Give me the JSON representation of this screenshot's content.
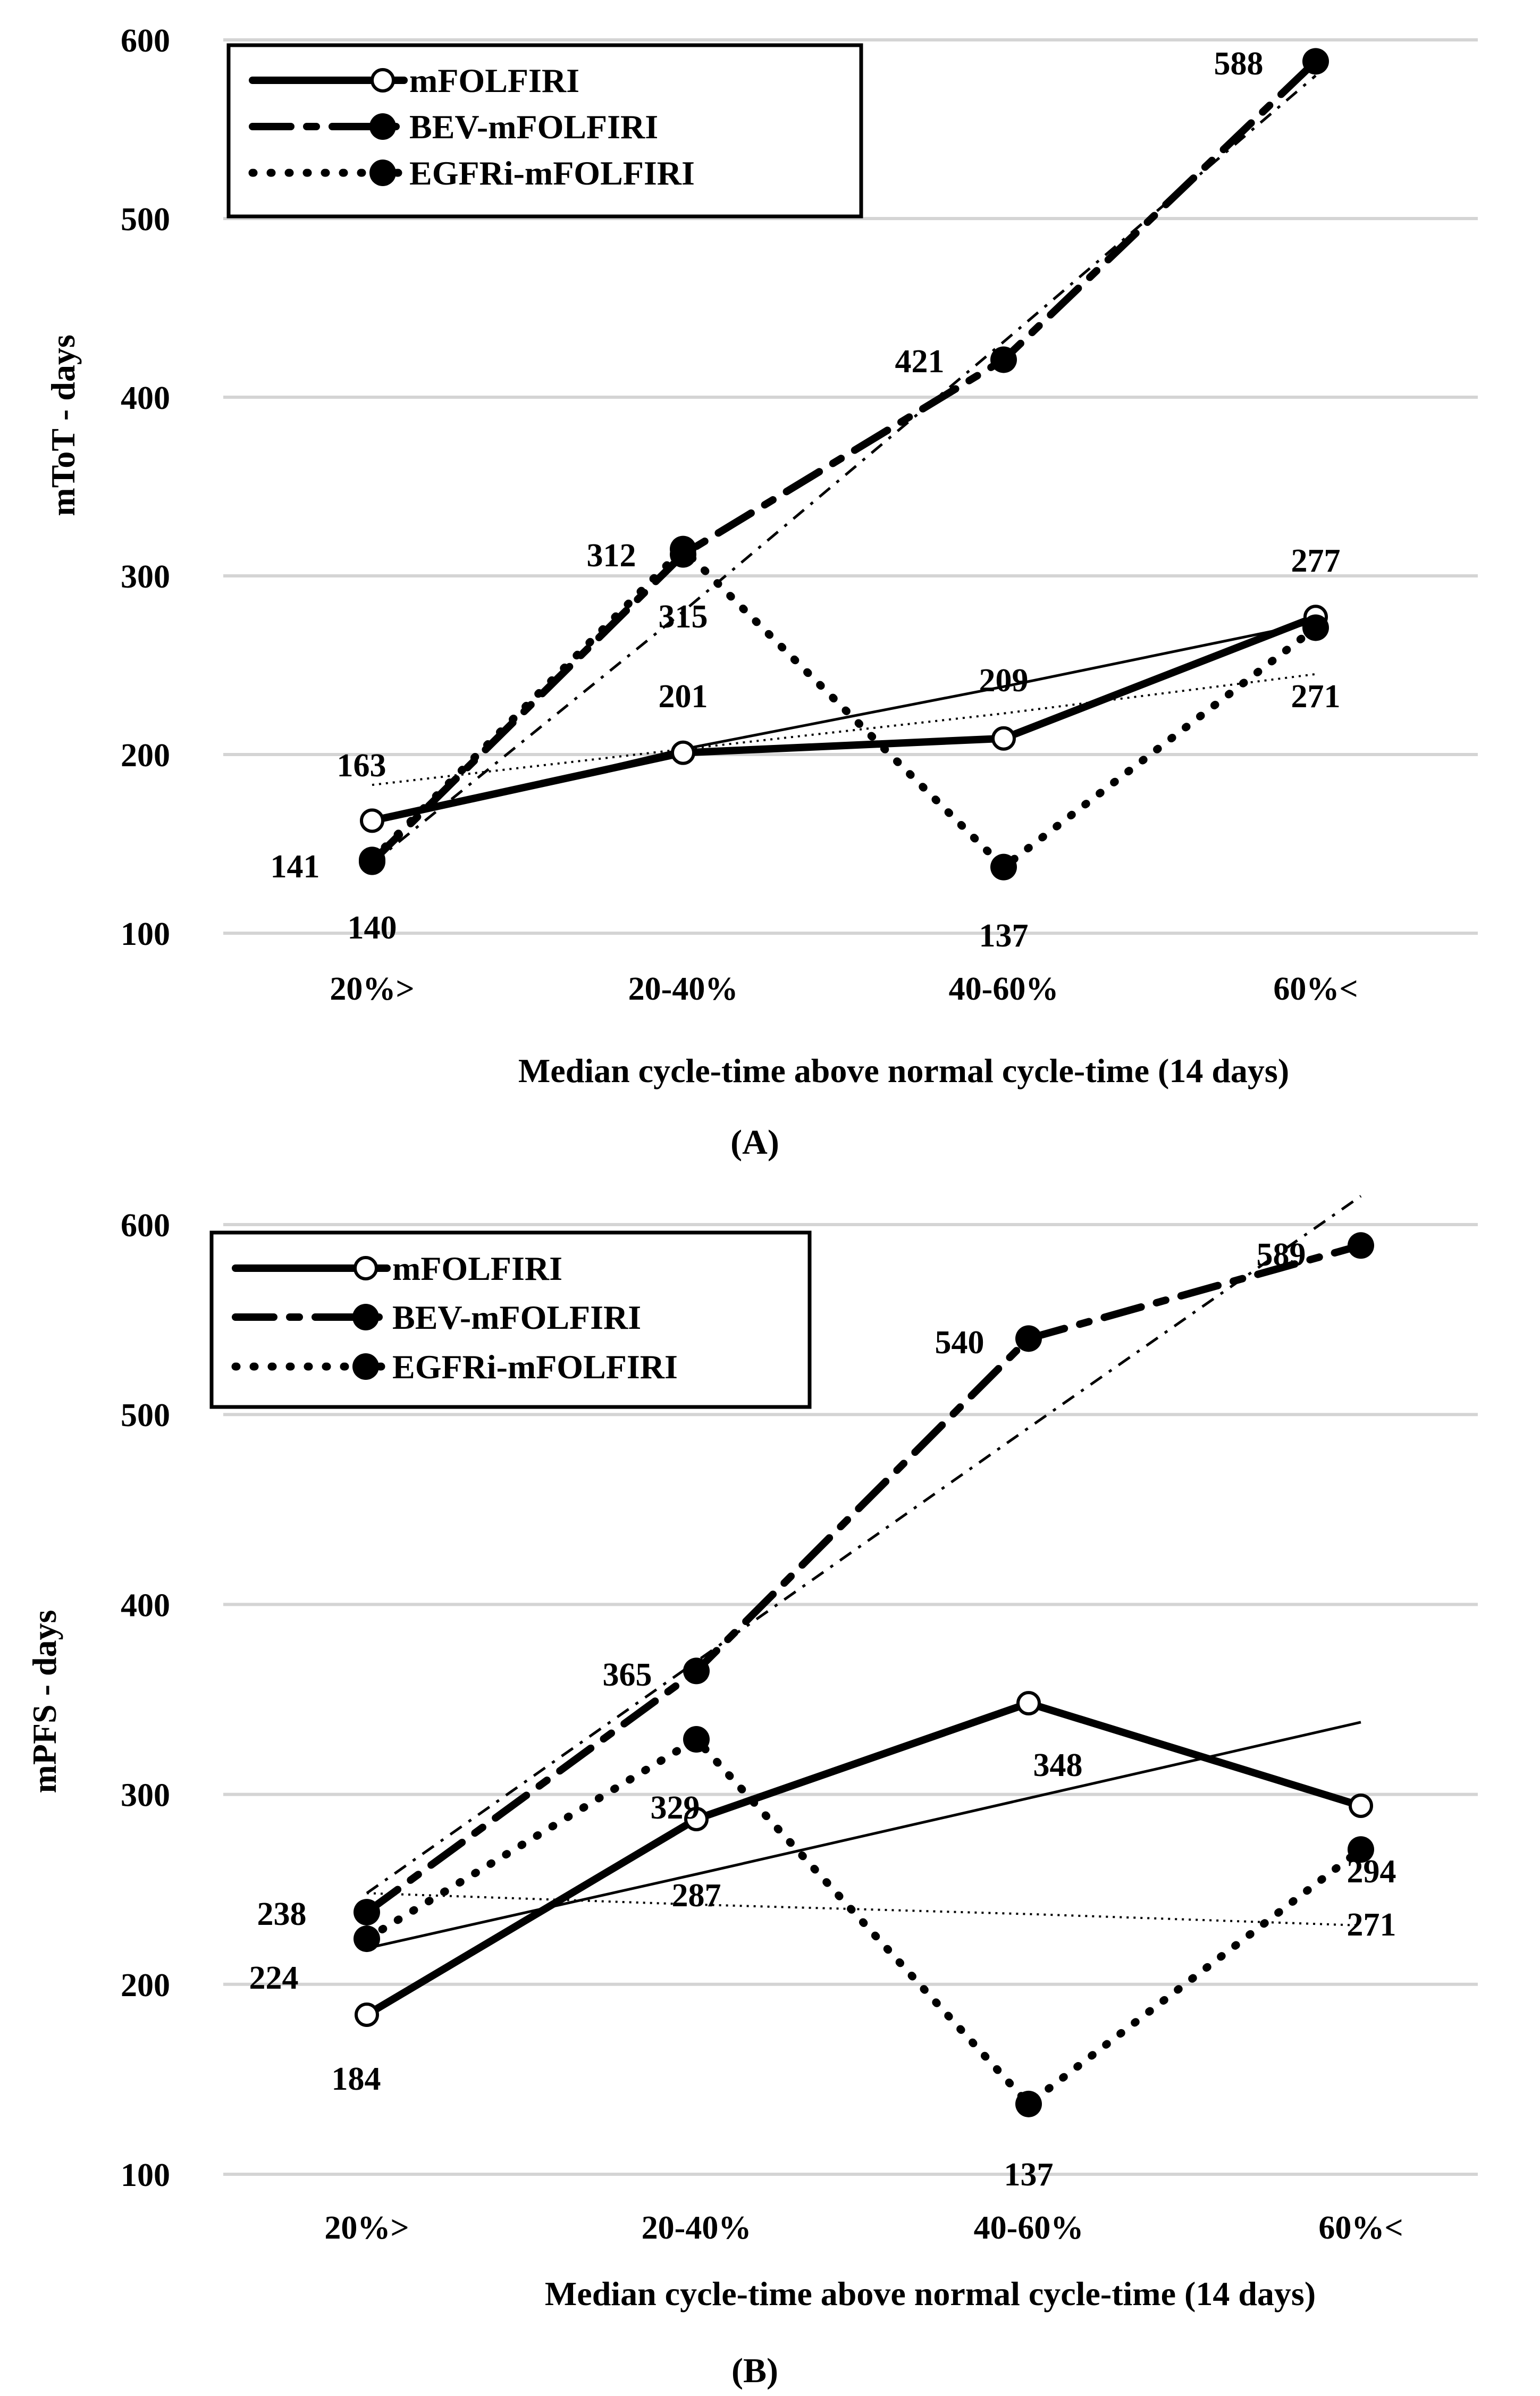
{
  "chart_data": [
    {
      "type": "line",
      "panel_label": "A",
      "categories": [
        "20%>",
        "20-40%",
        "40-60%",
        "60%<"
      ],
      "xlabel": "Median cycle-time above normal cycle-time (14 days)",
      "ylabel": "mToT - days",
      "ylim": [
        100,
        600
      ],
      "yticks": [
        "100",
        "200",
        "300",
        "400",
        "500",
        "600"
      ],
      "grid": true,
      "legend_position": "top-left",
      "series": [
        {
          "name": "mFOLFIRI",
          "values": [
            163,
            201,
            209,
            277
          ],
          "labels": [
            "163",
            "201",
            "209",
            "277"
          ],
          "trend": [
            162,
            203,
            238,
            274
          ]
        },
        {
          "name": "BEV-mFOLFIRI",
          "values": [
            140,
            312,
            421,
            588
          ],
          "labels": [
            "140",
            "312",
            "421",
            "588"
          ],
          "trend": [
            139,
            280,
            431,
            580
          ]
        },
        {
          "name": "EGFRi-mFOLFIRI",
          "values": [
            141,
            315,
            137,
            271
          ],
          "labels": [
            "141",
            "315",
            "137",
            "271"
          ],
          "trend": [
            183,
            203,
            223,
            245
          ]
        }
      ]
    },
    {
      "type": "line",
      "panel_label": "B",
      "categories": [
        "20%>",
        "20-40%",
        "40-60%",
        "60%<"
      ],
      "xlabel": "Median cycle-time above normal cycle-time (14 days)",
      "ylabel": "mPFS - days",
      "ylim": [
        100,
        600
      ],
      "yticks": [
        "100",
        "200",
        "300",
        "400",
        "500",
        "600"
      ],
      "grid": true,
      "legend_position": "top-left",
      "series": [
        {
          "name": "mFOLFIRI",
          "values": [
            184,
            287,
            348,
            294
          ],
          "labels": [
            "184",
            "287",
            "348",
            "294"
          ],
          "trend": [
            219,
            258,
            298,
            338
          ]
        },
        {
          "name": "BEV-mFOLFIRI",
          "values": [
            238,
            365,
            540,
            589
          ],
          "labels": [
            "238",
            "365",
            "540",
            "589"
          ],
          "trend": [
            248,
            370,
            493,
            615
          ]
        },
        {
          "name": "EGFRi-mFOLFIRI",
          "values": [
            224,
            329,
            137,
            271
          ],
          "labels": [
            "224",
            "329",
            "137",
            "271"
          ],
          "trend": [
            248,
            242,
            237,
            231
          ]
        }
      ]
    }
  ]
}
